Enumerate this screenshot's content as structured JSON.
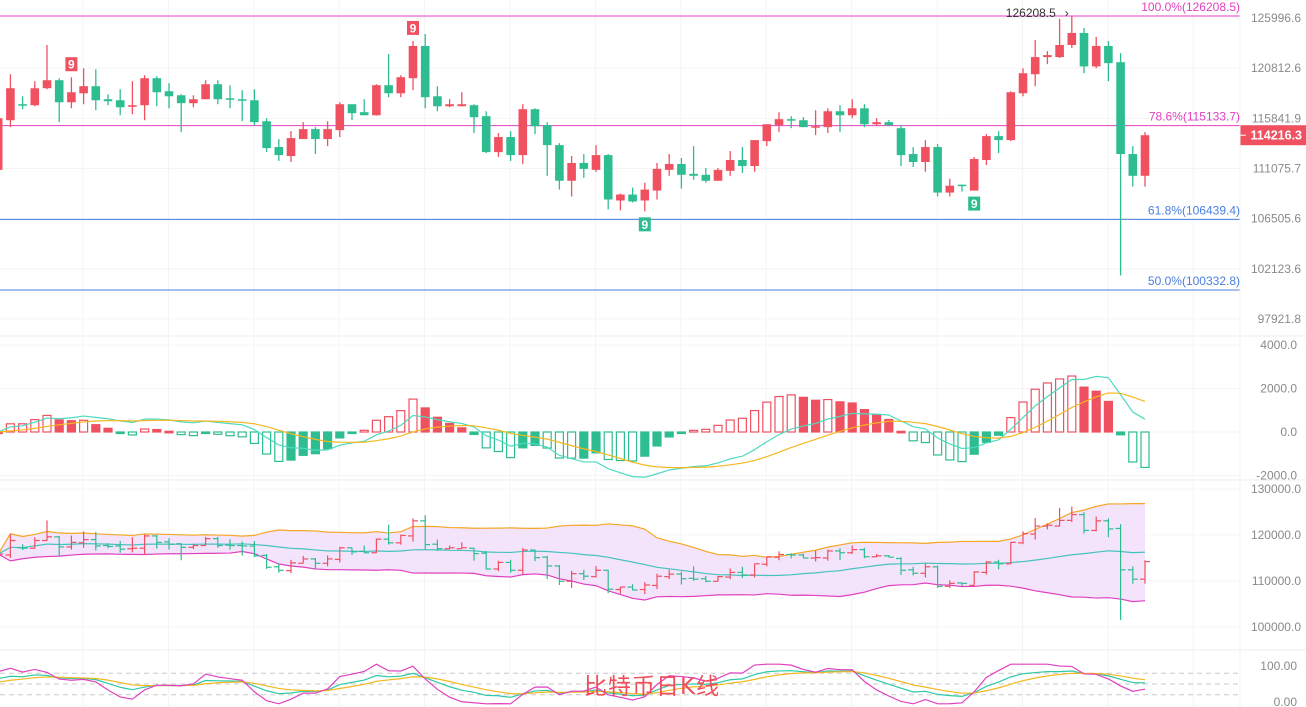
{
  "chart_data": {
    "type": "candlestick",
    "colors": {
      "up": "#ef5161",
      "down": "#2ebd91",
      "fib_upper": "#e040c0",
      "fib_lower": "#4a7fe0",
      "boll_upper": "#f5a623",
      "boll_mid": "#45c2be",
      "boll_lower": "#e040c0",
      "boll_fill": "#f3e4fc",
      "macd_dif": "#4dd9c0",
      "macd_dea": "#f5b720",
      "kdj_k": "#2ec9a8",
      "kdj_d": "#f5b720",
      "kdj_j": "#e040c0"
    },
    "price_axis": {
      "scale": "log",
      "ticks": [
        "125996.6",
        "120812.6",
        "115841.9",
        "111075.7",
        "106505.6",
        "102123.6",
        "97921.8"
      ]
    },
    "candles_ohlc": [
      [
        110950,
        116150,
        110770,
        115850
      ],
      [
        115660,
        120200,
        114990,
        118800
      ],
      [
        117220,
        118000,
        116730,
        117120
      ],
      [
        117120,
        119500,
        117020,
        118800
      ],
      [
        118800,
        123180,
        118700,
        119600
      ],
      [
        119600,
        119800,
        115470,
        117410
      ],
      [
        117410,
        119900,
        116820,
        118400
      ],
      [
        118300,
        120800,
        117220,
        119000
      ],
      [
        119000,
        120700,
        116630,
        117610
      ],
      [
        117710,
        118200,
        117120,
        117510
      ],
      [
        117610,
        118700,
        116140,
        116920
      ],
      [
        117020,
        119500,
        116240,
        117120
      ],
      [
        117120,
        120100,
        115660,
        119800
      ],
      [
        119800,
        120000,
        117020,
        118400
      ],
      [
        118500,
        119300,
        116820,
        118000
      ],
      [
        118100,
        118200,
        114510,
        117320
      ],
      [
        117320,
        118100,
        116920,
        117710
      ],
      [
        117710,
        119600,
        117710,
        119200
      ],
      [
        119200,
        119600,
        117220,
        117710
      ],
      [
        117810,
        119100,
        116820,
        117710
      ],
      [
        117710,
        118600,
        115570,
        117610
      ],
      [
        117610,
        118700,
        115180,
        115470
      ],
      [
        115560,
        115850,
        112610,
        112990
      ],
      [
        113090,
        113850,
        111780,
        112330
      ],
      [
        112240,
        114610,
        111680,
        113940
      ],
      [
        113850,
        115470,
        113850,
        114800
      ],
      [
        114800,
        114990,
        112430,
        113850
      ],
      [
        113850,
        115560,
        113180,
        114800
      ],
      [
        114700,
        117410,
        114040,
        117220
      ],
      [
        117220,
        117220,
        115660,
        116340
      ],
      [
        116440,
        117710,
        116140,
        116140
      ],
      [
        116140,
        119200,
        116100,
        119100
      ],
      [
        119100,
        122250,
        117910,
        118300
      ],
      [
        118300,
        120100,
        117910,
        119900
      ],
      [
        119800,
        123600,
        118600,
        123080
      ],
      [
        123080,
        124320,
        116820,
        117910
      ],
      [
        118000,
        119000,
        116530,
        117020
      ],
      [
        117020,
        117710,
        116920,
        117220
      ],
      [
        117020,
        118400,
        117020,
        117220
      ],
      [
        117120,
        117220,
        114420,
        115950
      ],
      [
        116050,
        116530,
        112520,
        112610
      ],
      [
        112610,
        114420,
        112150,
        114040
      ],
      [
        114040,
        114610,
        111780,
        112330
      ],
      [
        112330,
        117220,
        111500,
        116730
      ],
      [
        116730,
        116820,
        114320,
        115080
      ],
      [
        115180,
        115470,
        110400,
        113270
      ],
      [
        113270,
        113460,
        109130,
        109940
      ],
      [
        109940,
        112240,
        108500,
        111590
      ],
      [
        111590,
        112430,
        110210,
        111040
      ],
      [
        110950,
        113270,
        110770,
        112330
      ],
      [
        112330,
        112430,
        107340,
        108230
      ],
      [
        108140,
        108770,
        107250,
        108680
      ],
      [
        108680,
        109310,
        107960,
        108050
      ],
      [
        108140,
        109760,
        107160,
        109130
      ],
      [
        109040,
        111590,
        108230,
        111040
      ],
      [
        110950,
        112430,
        110400,
        111500
      ],
      [
        111500,
        112060,
        109220,
        110490
      ],
      [
        110580,
        113180,
        110030,
        110400
      ],
      [
        110490,
        111130,
        109760,
        109940
      ],
      [
        109940,
        111130,
        109940,
        110950
      ],
      [
        110860,
        112710,
        110400,
        111870
      ],
      [
        111870,
        113090,
        110670,
        111310
      ],
      [
        111310,
        113750,
        110770,
        113750
      ],
      [
        113650,
        115270,
        113180,
        115270
      ],
      [
        115180,
        116440,
        114510,
        115760
      ],
      [
        115760,
        116050,
        114890,
        115660
      ],
      [
        115660,
        115950,
        114990,
        114990
      ],
      [
        114990,
        116630,
        114230,
        115080
      ],
      [
        114990,
        116820,
        114420,
        116530
      ],
      [
        116530,
        117120,
        114510,
        116140
      ],
      [
        116140,
        117710,
        115850,
        116820
      ],
      [
        116820,
        117220,
        114990,
        115270
      ],
      [
        115270,
        115850,
        115180,
        115470
      ],
      [
        115470,
        115660,
        115180,
        115180
      ],
      [
        114890,
        115180,
        111310,
        112330
      ],
      [
        112430,
        113090,
        111220,
        111680
      ],
      [
        111680,
        113750,
        110770,
        113090
      ],
      [
        113090,
        113370,
        108500,
        108860
      ],
      [
        108860,
        110120,
        108500,
        109490
      ],
      [
        109580,
        109580,
        108950,
        109490
      ],
      [
        109040,
        112150,
        109040,
        111960
      ],
      [
        111870,
        114320,
        111400,
        114130
      ],
      [
        114130,
        114610,
        112520,
        113750
      ],
      [
        113750,
        118500,
        113650,
        118400
      ],
      [
        118300,
        120800,
        118000,
        120300
      ],
      [
        120200,
        123700,
        119000,
        121940
      ],
      [
        121940,
        122550,
        121220,
        122140
      ],
      [
        121940,
        125900,
        121840,
        123180
      ],
      [
        123180,
        126208.5,
        122870,
        124430
      ],
      [
        124430,
        124950,
        120300,
        120990
      ],
      [
        120990,
        124020,
        120800,
        123080
      ],
      [
        123080,
        123600,
        119500,
        121320
      ],
      [
        121420,
        122350,
        101550,
        112430
      ],
      [
        112430,
        113180,
        109400,
        110400
      ],
      [
        110400,
        114510,
        109400,
        114216.3
      ]
    ],
    "fib_levels": [
      {
        "label": "100.0%(126208.5)",
        "price": 126208.5,
        "group": "upper"
      },
      {
        "label": "78.6%(115133.7)",
        "price": 115133.7,
        "group": "upper"
      },
      {
        "label": "61.8%(106439.4)",
        "price": 106439.4,
        "group": "lower"
      },
      {
        "label": "50.0%(100332.8)",
        "price": 100332.8,
        "group": "lower"
      }
    ],
    "high_marker": {
      "label": "126208.5",
      "arrow": "›",
      "candle_index": 88
    },
    "last_price": {
      "label": "114216.3",
      "value": 114216.3
    },
    "td_markers": [
      {
        "label": "9",
        "candle_index": 6,
        "side": "above",
        "color": "up"
      },
      {
        "label": "9",
        "candle_index": 34,
        "side": "above",
        "color": "up"
      },
      {
        "label": "9",
        "candle_index": 53,
        "side": "below",
        "color": "down"
      },
      {
        "label": "9",
        "candle_index": 80,
        "side": "below",
        "color": "down"
      }
    ],
    "macd_panel": {
      "ticks": [
        {
          "label": "4000.0",
          "value": 4000
        },
        {
          "label": "2000.0",
          "value": 2000
        },
        {
          "label": "0.0",
          "value": 0
        },
        {
          "label": "-2000.0",
          "value": -2000
        }
      ]
    },
    "boll_panel": {
      "ticks": [
        {
          "label": "130000.0",
          "value": 130000
        },
        {
          "label": "120000.0",
          "value": 120000
        },
        {
          "label": "110000.0",
          "value": 110000
        },
        {
          "label": "100000.0",
          "value": 100000
        }
      ]
    },
    "kdj_panel": {
      "ticks": [
        {
          "label": "100.00",
          "value": 100
        },
        {
          "label": "0.00",
          "value": 0
        }
      ],
      "reference_lines": [
        80,
        50,
        20
      ]
    }
  },
  "caption": "比特币日K线"
}
